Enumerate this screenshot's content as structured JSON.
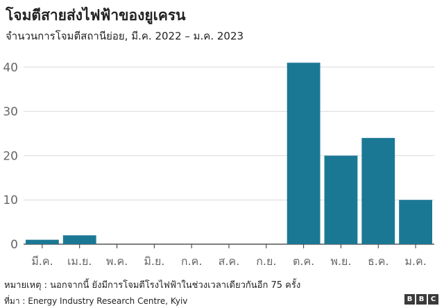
{
  "chart_data": {
    "type": "bar",
    "title": "โจมตีสายส่งไฟฟ้าของยูเครน",
    "subtitle": "จำนวนการโจมตีสถานีย่อย, มี.ค. 2022 – ม.ค. 2023",
    "categories": [
      "มี.ค.",
      "เม.ย.",
      "พ.ค.",
      "มิ.ย.",
      "ก.ค.",
      "ส.ค.",
      "ก.ย.",
      "ต.ค.",
      "พ.ย.",
      "ธ.ค.",
      "ม.ค."
    ],
    "values": [
      1,
      2,
      0,
      0,
      0,
      0,
      0,
      41,
      20,
      24,
      10
    ],
    "yticks": [
      "0",
      "10",
      "20",
      "30",
      "40"
    ],
    "ylim": [
      0,
      42
    ],
    "grid": true,
    "bar_color": "#1b7895",
    "grid_color": "#d9d9d9"
  },
  "footer": {
    "note": "หมายเหตุ : นอกจากนี้ ยังมีการโจมตีโรงไฟฟ้าในช่วงเวลาเดียวกันอีก 75 ครั้ง",
    "source": "ที่มา : Energy Industry Research Centre, Kyiv",
    "logo_letters": [
      "B",
      "B",
      "C"
    ]
  }
}
